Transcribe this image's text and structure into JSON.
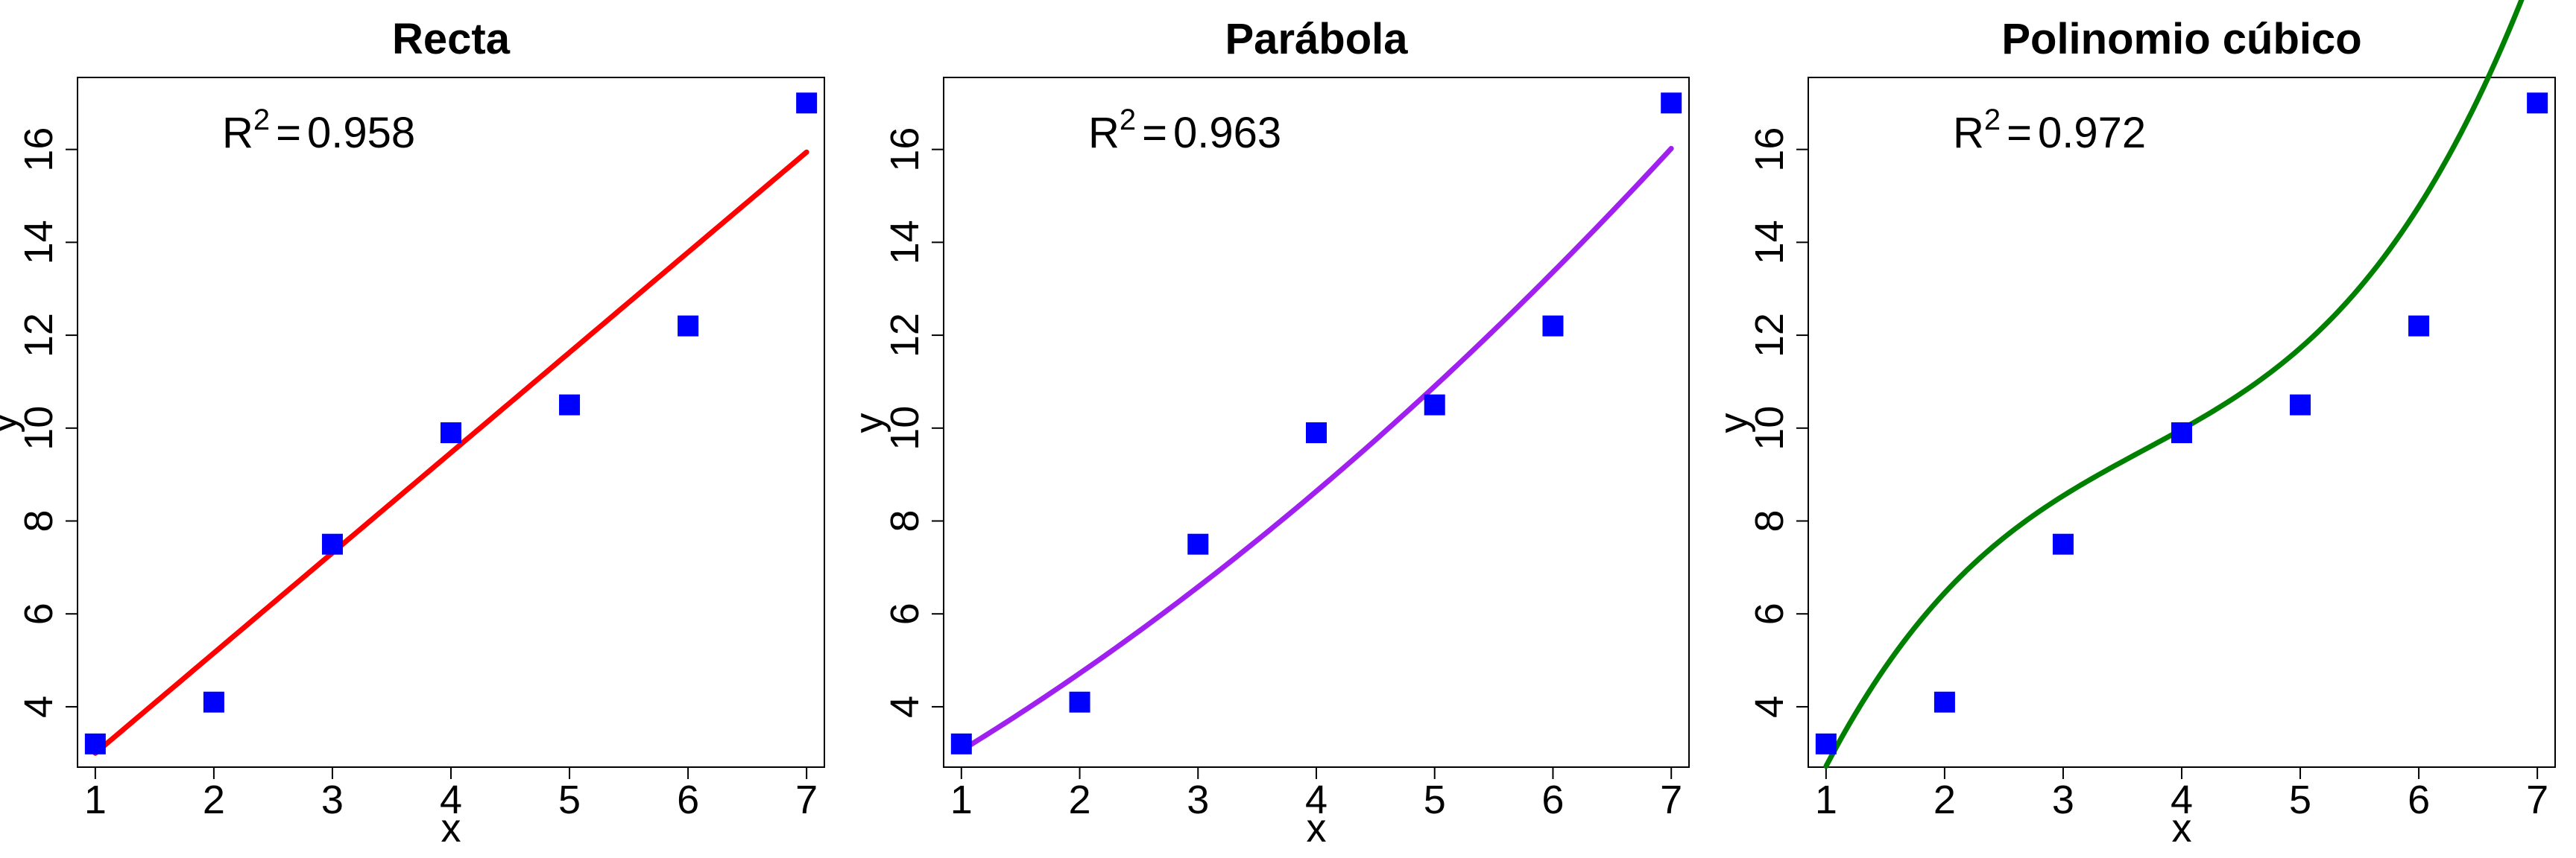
{
  "chart_data": [
    {
      "type": "scatter",
      "title": "Recta",
      "xlabel": "x",
      "ylabel": "y",
      "xlim": [
        0.85,
        7.15
      ],
      "ylim": [
        2.7,
        17.55
      ],
      "x_ticks": [
        1,
        2,
        3,
        4,
        5,
        6,
        7
      ],
      "y_ticks": [
        4,
        6,
        8,
        10,
        12,
        14,
        16
      ],
      "x_tick_labels": [
        "1",
        "2",
        "3",
        "4",
        "5",
        "6",
        "7"
      ],
      "y_tick_labels": [
        "4",
        "6",
        "8",
        "10",
        "12",
        "14",
        "16"
      ],
      "points": {
        "x": [
          1,
          2,
          3,
          4,
          5,
          6,
          7
        ],
        "y": [
          3.2,
          4.1,
          7.5,
          9.9,
          10.5,
          12.2,
          17.0
        ],
        "color": "#0000ff",
        "marker": "square"
      },
      "fit": {
        "degree": 1,
        "color": "#ff0000",
        "x_range": [
          1,
          7
        ],
        "coefficients": [
          0.8429,
          2.1571
        ]
      },
      "annotation": {
        "r2_label": "R",
        "r2_exp": "2",
        "r2_eq": "=",
        "r2_value": "0.958"
      },
      "grid": false,
      "legend": "none"
    },
    {
      "type": "scatter",
      "title": "Parábola",
      "xlabel": "x",
      "ylabel": "y",
      "xlim": [
        0.85,
        7.15
      ],
      "ylim": [
        2.7,
        17.55
      ],
      "x_ticks": [
        1,
        2,
        3,
        4,
        5,
        6,
        7
      ],
      "y_ticks": [
        4,
        6,
        8,
        10,
        12,
        14,
        16
      ],
      "x_tick_labels": [
        "1",
        "2",
        "3",
        "4",
        "5",
        "6",
        "7"
      ],
      "y_tick_labels": [
        "4",
        "6",
        "8",
        "10",
        "12",
        "14",
        "16"
      ],
      "points": {
        "x": [
          1,
          2,
          3,
          4,
          5,
          6,
          7
        ],
        "y": [
          3.2,
          4.1,
          7.5,
          9.9,
          10.5,
          12.2,
          17.0
        ],
        "color": "#0000ff",
        "marker": "square"
      },
      "fit": {
        "degree": 2,
        "color": "#a020f0",
        "x_range": [
          1,
          7
        ],
        "coefficients": [
          1.6,
          1.36,
          0.1
        ]
      },
      "annotation": {
        "r2_label": "R",
        "r2_exp": "2",
        "r2_eq": "=",
        "r2_value": "0.963"
      },
      "grid": false,
      "legend": "none"
    },
    {
      "type": "scatter",
      "title": "Polinomio cúbico",
      "xlabel": "x",
      "ylabel": "y",
      "xlim": [
        0.85,
        7.15
      ],
      "ylim": [
        2.7,
        17.55
      ],
      "x_ticks": [
        1,
        2,
        3,
        4,
        5,
        6,
        7
      ],
      "y_ticks": [
        4,
        6,
        8,
        10,
        12,
        14,
        16
      ],
      "x_tick_labels": [
        "1",
        "2",
        "3",
        "4",
        "5",
        "6",
        "7"
      ],
      "y_tick_labels": [
        "4",
        "6",
        "8",
        "10",
        "12",
        "14",
        "16"
      ],
      "points": {
        "x": [
          1,
          2,
          3,
          4,
          5,
          6,
          7
        ],
        "y": [
          3.2,
          4.1,
          7.5,
          9.9,
          10.5,
          12.2,
          17.0
        ],
        "color": "#0000ff",
        "marker": "square"
      },
      "fit": {
        "degree": 3,
        "color": "#008000",
        "x_range": [
          1,
          7
        ],
        "coefficients": [
          -3.6317,
          7.9883,
          -1.8,
          0.1633
        ]
      },
      "annotation": {
        "r2_label": "R",
        "r2_exp": "2",
        "r2_eq": "=",
        "r2_value": "0.972"
      },
      "grid": false,
      "legend": "none"
    }
  ]
}
